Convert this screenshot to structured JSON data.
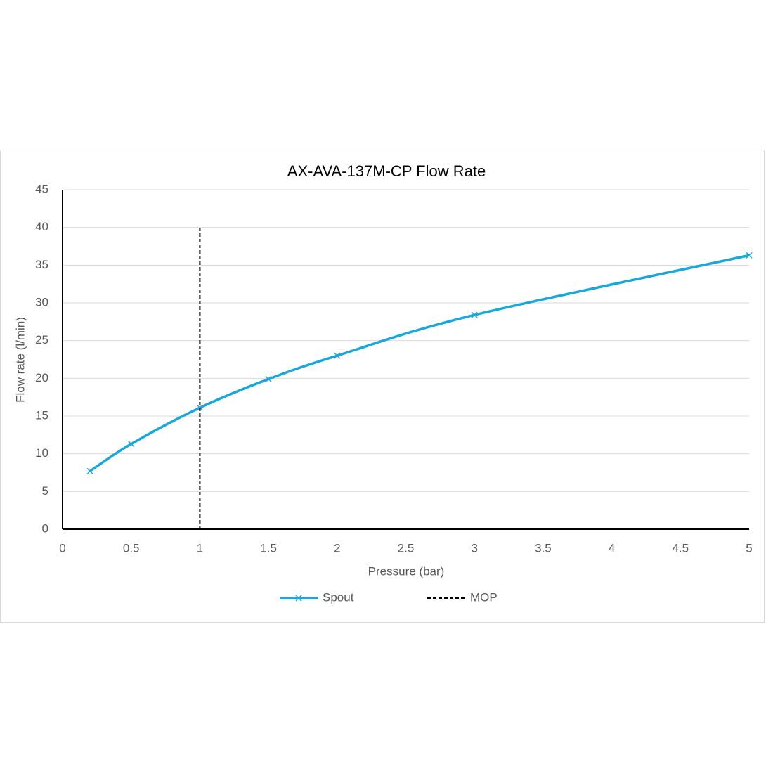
{
  "chart_data": {
    "type": "line",
    "title": "AX-AVA-137M-CP Flow Rate",
    "x_label": "Pressure (bar)",
    "y_label": "Flow rate (l/min)",
    "xlim": [
      0,
      5
    ],
    "xticks": [
      0,
      0.5,
      1,
      1.5,
      2,
      2.5,
      3,
      3.5,
      4,
      4.5,
      5
    ],
    "ylim": [
      0,
      45
    ],
    "yticks": [
      0,
      5,
      10,
      15,
      20,
      25,
      30,
      35,
      40,
      45
    ],
    "grid": true,
    "legend": "bottom",
    "series": [
      {
        "name": "Spout",
        "color": "#1aa7da",
        "marker": "x",
        "smooth": true,
        "dashed": false,
        "x": [
          0.2,
          0.5,
          1,
          1.5,
          2,
          3,
          5
        ],
        "values": [
          7.7,
          11.3,
          16.1,
          19.9,
          23,
          28.4,
          36.3
        ]
      },
      {
        "name": "MOP",
        "color": "#000000",
        "marker": "none",
        "smooth": false,
        "dashed": true,
        "x": [
          1,
          1
        ],
        "values": [
          0,
          40
        ]
      }
    ]
  }
}
